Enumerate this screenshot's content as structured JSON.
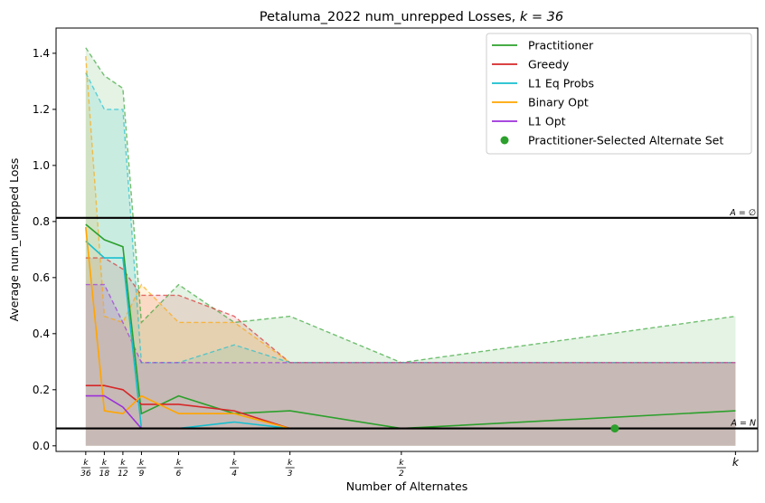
{
  "chart_data": {
    "type": "line",
    "title": "Petaluma_2022 num_unrepped Losses, ",
    "title_math": "k = 36",
    "xlabel": "Number of Alternates",
    "ylabel": "Average num_unrepped Loss",
    "ylim": [
      -0.02,
      1.49
    ],
    "yticks": [
      0.0,
      0.2,
      0.4,
      0.6,
      0.8,
      1.0,
      1.2,
      1.4
    ],
    "ytick_labels": [
      "0.0",
      "0.2",
      "0.4",
      "0.6",
      "0.8",
      "1.0",
      "1.2",
      "1.4"
    ],
    "xlim": [
      -0.6,
      37.2
    ],
    "x": [
      1,
      2,
      3,
      4,
      6,
      9,
      12,
      18,
      36
    ],
    "xtick_labels": [
      {
        "num": "k",
        "den": "36"
      },
      {
        "num": "k",
        "den": "18"
      },
      {
        "num": "k",
        "den": "12"
      },
      {
        "num": "k",
        "den": "9"
      },
      {
        "num": "k",
        "den": "6"
      },
      {
        "num": "k",
        "den": "4"
      },
      {
        "num": "k",
        "den": "3"
      },
      {
        "num": "k",
        "den": "2"
      },
      {
        "num": "k",
        "den": ""
      }
    ],
    "reference_lines": [
      {
        "label": "A = ∅",
        "y": 0.813
      },
      {
        "label": "A = N",
        "y": 0.062
      }
    ],
    "series": [
      {
        "name": "Practitioner",
        "color": "#2ca02c",
        "mean": [
          0.79,
          0.735,
          0.71,
          0.115,
          0.178,
          0.115,
          0.125,
          0.062,
          0.125
        ],
        "upper": [
          1.42,
          1.32,
          1.275,
          0.44,
          0.575,
          0.44,
          0.462,
          0.297,
          0.462
        ],
        "lower": [
          0.0,
          0.0,
          0.0,
          0.0,
          0.0,
          0.0,
          0.0,
          0.0,
          0.0
        ]
      },
      {
        "name": "Greedy",
        "color": "#d62728",
        "mean": [
          0.215,
          0.215,
          0.2,
          0.148,
          0.148,
          0.125,
          0.062,
          null,
          null
        ],
        "upper": [
          0.67,
          0.67,
          0.63,
          0.537,
          0.537,
          0.462,
          0.297,
          0.297,
          0.297
        ],
        "lower": [
          0.0,
          0.0,
          0.0,
          0.0,
          0.0,
          0.0,
          0.0,
          0.0,
          0.0
        ]
      },
      {
        "name": "L1 Eq Probs",
        "color": "#17becf",
        "mean": [
          0.73,
          0.67,
          0.67,
          0.062,
          0.062,
          0.085,
          0.062,
          null,
          null
        ],
        "upper": [
          1.33,
          1.2,
          1.2,
          0.297,
          0.297,
          0.36,
          0.297,
          0.297,
          0.297
        ],
        "lower": [
          0.0,
          0.0,
          0.0,
          0.0,
          0.0,
          0.0,
          0.0,
          0.0,
          0.0
        ]
      },
      {
        "name": "Binary Opt",
        "color": "#ffa500",
        "mean": [
          0.78,
          0.125,
          0.115,
          0.178,
          0.115,
          0.115,
          0.062,
          null,
          null
        ],
        "upper": [
          1.39,
          0.462,
          0.44,
          0.575,
          0.44,
          0.44,
          0.297,
          0.297,
          0.297
        ],
        "lower": [
          0.0,
          0.0,
          0.0,
          0.0,
          0.0,
          0.0,
          0.0,
          0.0,
          0.0
        ]
      },
      {
        "name": "L1 Opt",
        "color": "#9b30d9",
        "mean": [
          0.178,
          0.178,
          0.138,
          0.062,
          null,
          null,
          null,
          null,
          null
        ],
        "upper": [
          0.575,
          0.575,
          0.44,
          0.297,
          0.297,
          0.297,
          0.297,
          0.297,
          0.297
        ],
        "lower": [
          0.0,
          0.0,
          0.0,
          0.0,
          0.0,
          0.0,
          0.0,
          0.0,
          0.0
        ]
      }
    ],
    "marker": {
      "name": "Practitioner-Selected Alternate Set",
      "color": "#2ca02c",
      "x": 29.5,
      "y": 0.062
    },
    "legend_position": "top-right"
  }
}
